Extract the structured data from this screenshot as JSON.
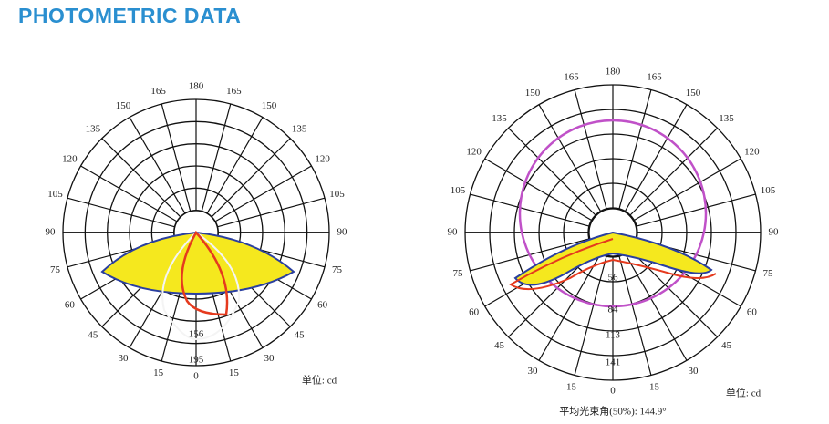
{
  "title": "PHOTOMETRIC DATA",
  "angle_labels": [
    "0",
    "15",
    "30",
    "45",
    "60",
    "75",
    "90",
    "105",
    "120",
    "135",
    "150",
    "165",
    "180"
  ],
  "diagrams": [
    {
      "ring_labels": [
        "156",
        "195"
      ],
      "unit": "单位: cd"
    },
    {
      "ring_labels": [
        "56",
        "84",
        "113",
        "141"
      ],
      "unit": "单位: cd",
      "caption": "平均光束角(50%): 144.9°"
    }
  ]
}
